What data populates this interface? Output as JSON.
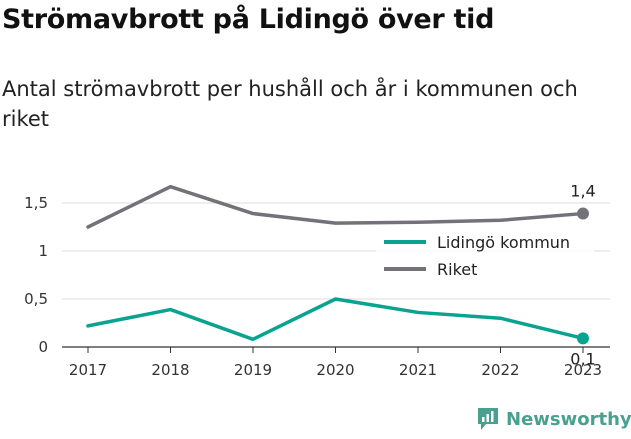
{
  "header": {
    "title": "Strömavbrott på Lidingö över tid",
    "subtitle": "Antal strömavbrott per hushåll och år i kommunen och riket"
  },
  "brand": {
    "name": "Newsworthy",
    "icon": "newsworthy-logo-icon",
    "color": "#4aa090"
  },
  "chart_data": {
    "type": "line",
    "x": [
      "2017",
      "2018",
      "2019",
      "2020",
      "2021",
      "2022",
      "2023"
    ],
    "series": [
      {
        "name": "Lidingö kommun",
        "color": "#0aa38f",
        "values": [
          0.22,
          0.39,
          0.08,
          0.5,
          0.36,
          0.3,
          0.09
        ],
        "end_label": "0,1"
      },
      {
        "name": "Riket",
        "color": "#747278",
        "values": [
          1.25,
          1.67,
          1.39,
          1.29,
          1.3,
          1.32,
          1.39
        ],
        "end_label": "1,4"
      }
    ],
    "y_ticks": [
      {
        "value": 0,
        "label": "0"
      },
      {
        "value": 0.5,
        "label": "0,5"
      },
      {
        "value": 1,
        "label": "1"
      },
      {
        "value": 1.5,
        "label": "1,5"
      }
    ],
    "ylim": [
      0,
      1.75
    ],
    "grid": true,
    "legend_position": "right"
  }
}
